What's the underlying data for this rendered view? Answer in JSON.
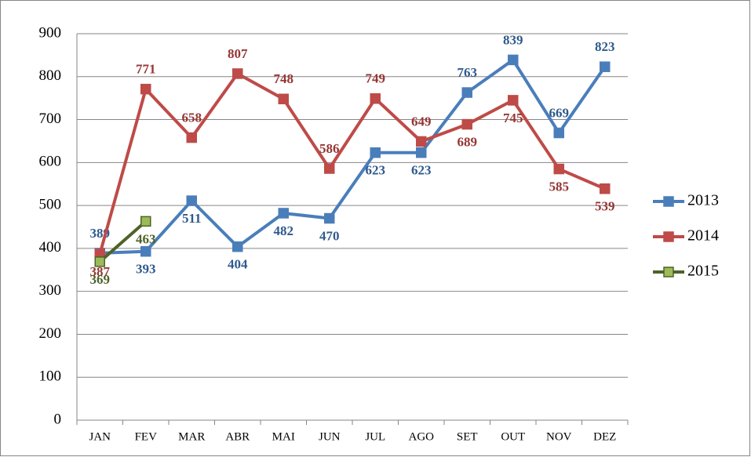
{
  "chart_data": {
    "type": "line",
    "categories": [
      "JAN",
      "FEV",
      "MAR",
      "ABR",
      "MAI",
      "JUN",
      "JUL",
      "AGO",
      "SET",
      "OUT",
      "NOV",
      "DEZ"
    ],
    "series": [
      {
        "name": "2013",
        "color": "#4a7ebb",
        "label_color": "#2f5a8c",
        "values": [
          389,
          393,
          511,
          404,
          482,
          470,
          623,
          623,
          763,
          839,
          669,
          823
        ]
      },
      {
        "name": "2014",
        "color": "#be4b48",
        "label_color": "#953735",
        "values": [
          387,
          771,
          658,
          807,
          748,
          586,
          749,
          649,
          689,
          745,
          585,
          539
        ]
      },
      {
        "name": "2015",
        "color": "#4f6228",
        "marker_color": "#9bbb59",
        "label_color": "#4f6228",
        "values": [
          369,
          463,
          null,
          null,
          null,
          null,
          null,
          null,
          null,
          null,
          null,
          null
        ]
      }
    ],
    "ylim": [
      0,
      900
    ],
    "yticks": [
      0,
      100,
      200,
      300,
      400,
      500,
      600,
      700,
      800,
      900
    ],
    "grid": true,
    "legend": "right"
  }
}
